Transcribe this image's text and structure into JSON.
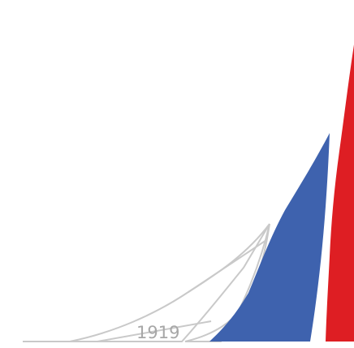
{
  "logo": {
    "year_text": "1919",
    "colors": {
      "outline": "#c9c9c9",
      "year_text": "#a7a7a7",
      "blue": "#3E62AE",
      "red": "#DE1E23",
      "background": "#FFFFFF"
    },
    "icon_name": "sailboat-logo-icon"
  }
}
